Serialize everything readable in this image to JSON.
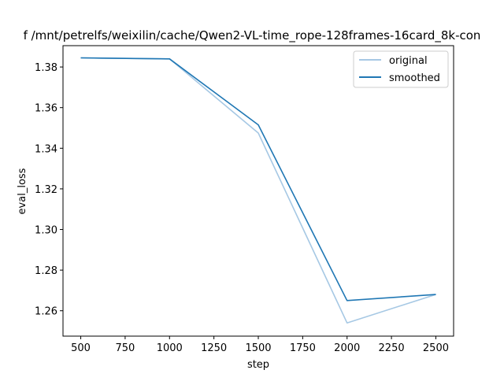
{
  "chart_data": {
    "type": "line",
    "title": "f /mnt/petrelfs/weixilin/cache/Qwen2-VL-time_rope-128frames-16card_8k-con",
    "xlabel": "step",
    "ylabel": "eval_loss",
    "xlim": [
      400,
      2600
    ],
    "ylim": [
      1.2475,
      1.3905
    ],
    "x_ticks": [
      500,
      750,
      1000,
      1250,
      1500,
      1750,
      2000,
      2250,
      2500
    ],
    "y_ticks": [
      1.26,
      1.28,
      1.3,
      1.32,
      1.34,
      1.36,
      1.38
    ],
    "x_tick_labels": [
      "500",
      "750",
      "1000",
      "1250",
      "1500",
      "1750",
      "2000",
      "2250",
      "2500"
    ],
    "y_tick_labels": [
      "1.26",
      "1.28",
      "1.30",
      "1.32",
      "1.34",
      "1.36",
      "1.38"
    ],
    "grid": false,
    "legend_position": "top-right",
    "series": [
      {
        "name": "original",
        "color": "#a6c8e4",
        "x": [
          500,
          1000,
          1500,
          2000,
          2500
        ],
        "y": [
          1.3845,
          1.384,
          1.3475,
          1.254,
          1.268
        ]
      },
      {
        "name": "smoothed",
        "color": "#1f77b4",
        "x": [
          500,
          1000,
          1500,
          2000,
          2500
        ],
        "y": [
          1.3845,
          1.384,
          1.3515,
          1.265,
          1.268
        ]
      }
    ]
  }
}
